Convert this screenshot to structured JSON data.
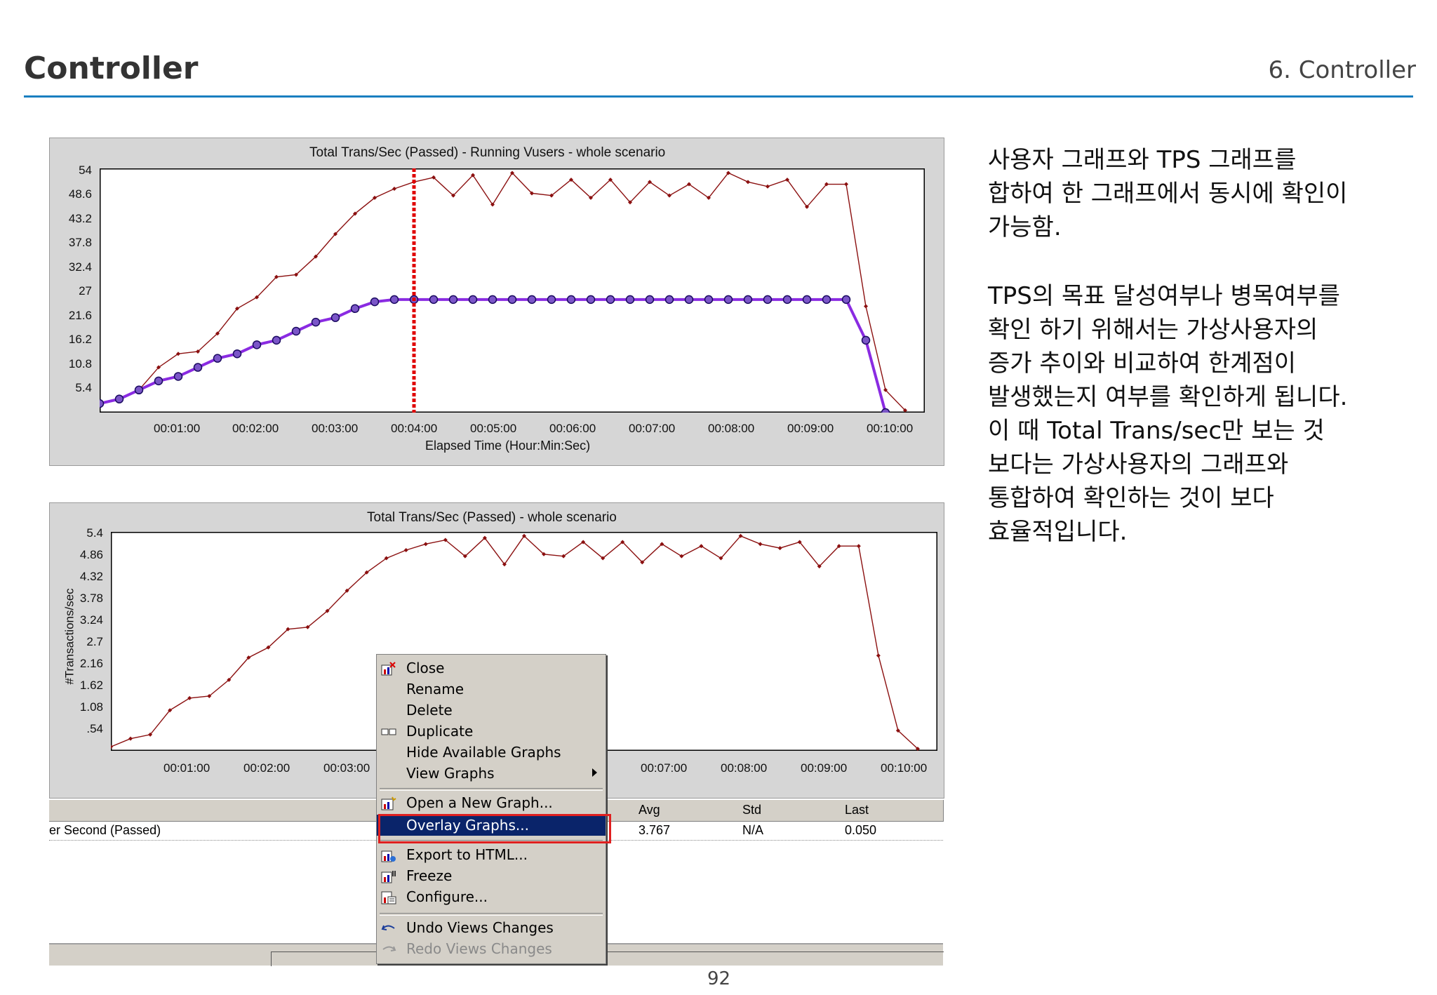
{
  "header": {
    "title": "Controller",
    "section": "6. Controller"
  },
  "graph1": {
    "title": "Total Trans/Sec (Passed) - Running Vusers - whole scenario",
    "xlabel": "Elapsed Time (Hour:Min:Sec)",
    "yticks": [
      "54",
      "48.6",
      "43.2",
      "37.8",
      "32.4",
      "27",
      "21.6",
      "16.2",
      "10.8",
      "5.4"
    ],
    "xticks": [
      "00:01:00",
      "00:02:00",
      "00:03:00",
      "00:04:00",
      "00:05:00",
      "00:06:00",
      "00:07:00",
      "00:08:00",
      "00:09:00",
      "00:10:00"
    ]
  },
  "graph2": {
    "title": "Total Trans/Sec (Passed) - whole scenario",
    "ylabel": "#Transactions/sec",
    "yticks": [
      "5.4",
      "4.86",
      "4.32",
      "3.78",
      "3.24",
      "2.7",
      "2.16",
      "1.62",
      "1.08",
      ".54"
    ],
    "xticks": [
      "00:01:00",
      "00:02:00",
      "00:03:00",
      "00:07:00",
      "00:08:00",
      "00:09:00",
      "00:10:00"
    ]
  },
  "legend_table": {
    "headers": {
      "avg": "Avg",
      "std": "Std",
      "last": "Last"
    },
    "row": {
      "measurement": "er Second (Passed)",
      "avg": "3.767",
      "std": "N/A",
      "last": "0.050"
    }
  },
  "context_menu": {
    "items": {
      "close": "Close",
      "rename": "Rename",
      "delete": "Delete",
      "duplicate": "Duplicate",
      "hide": "Hide Available Graphs",
      "view": "View Graphs",
      "open": "Open a New Graph...",
      "overlay": "Overlay Graphs...",
      "export": "Export to HTML...",
      "freeze": "Freeze",
      "configure": "Configure...",
      "undo": "Undo Views Changes",
      "redo": "Redo Views Changes"
    }
  },
  "description": {
    "para1": [
      "사용자 그래프와 TPS 그래프를",
      "합하여 한 그래프에서 동시에 확인이",
      "가능함."
    ],
    "para2": [
      "TPS의 목표 달성여부나 병목여부를",
      "확인 하기 위해서는 가상사용자의",
      "증가 추이와 비교하여 한계점이",
      "발생했는지 여부를 확인하게 됩니다.",
      "이 때 Total Trans/sec만 보는 것",
      "보다는 가상사용자의 그래프와",
      "통합하여 확인하는 것이 보다",
      "효율적입니다."
    ]
  },
  "page_number": "92",
  "chart_data": [
    {
      "type": "line",
      "title": "Total Trans/Sec (Passed) - Running Vusers - whole scenario",
      "xlabel": "Elapsed Time (Hour:Min:Sec)",
      "ylabel": "",
      "ylim": [
        0,
        54
      ],
      "x_unit": "minutes",
      "series": [
        {
          "name": "Total Trans/Sec (Passed)",
          "color": "#8b1010",
          "x": [
            0.0,
            0.25,
            0.5,
            0.75,
            1.0,
            1.25,
            1.5,
            1.75,
            2.0,
            2.25,
            2.5,
            2.75,
            3.0,
            3.25,
            3.5,
            3.75,
            4.0,
            4.25,
            4.5,
            4.75,
            5.0,
            5.25,
            5.5,
            5.75,
            6.0,
            6.25,
            6.5,
            6.75,
            7.0,
            7.25,
            7.5,
            7.75,
            8.0,
            8.25,
            8.5,
            8.75,
            9.0,
            9.25,
            9.5,
            9.75,
            10.0,
            10.25
          ],
          "y": [
            2.0,
            3.0,
            5.0,
            10.0,
            13.0,
            13.5,
            17.5,
            23.0,
            25.5,
            30.0,
            30.5,
            34.5,
            39.5,
            44.0,
            47.5,
            49.5,
            51.0,
            52.0,
            48.0,
            52.5,
            46.0,
            53.0,
            48.5,
            48.0,
            51.5,
            47.5,
            51.5,
            46.5,
            51.0,
            48.0,
            50.5,
            47.5,
            53.0,
            51.0,
            50.0,
            51.5,
            45.5,
            50.5,
            50.5,
            23.5,
            5.0,
            0.5
          ]
        },
        {
          "name": "Running Vusers",
          "color": "#8a2be2",
          "x": [
            0.0,
            0.25,
            0.5,
            0.75,
            1.0,
            1.25,
            1.5,
            1.75,
            2.0,
            2.25,
            2.5,
            2.75,
            3.0,
            3.25,
            3.5,
            3.75,
            4.0,
            4.25,
            4.5,
            4.75,
            5.0,
            5.25,
            5.5,
            5.75,
            6.0,
            6.25,
            6.5,
            6.75,
            7.0,
            7.25,
            7.5,
            7.75,
            8.0,
            8.25,
            8.5,
            8.75,
            9.0,
            9.25,
            9.5,
            9.75,
            10.0
          ],
          "y": [
            2.0,
            3.0,
            5.0,
            7.0,
            8.0,
            10.0,
            12.0,
            13.0,
            15.0,
            16.0,
            18.0,
            20.0,
            21.0,
            23.0,
            24.5,
            25.0,
            25.0,
            25.0,
            25.0,
            25.0,
            25.0,
            25.0,
            25.0,
            25.0,
            25.0,
            25.0,
            25.0,
            25.0,
            25.0,
            25.0,
            25.0,
            25.0,
            25.0,
            25.0,
            25.0,
            25.0,
            25.0,
            25.0,
            25.0,
            16.0,
            0.0
          ]
        }
      ],
      "marker_x": 4.0
    },
    {
      "type": "line",
      "title": "Total Trans/Sec (Passed) - whole scenario",
      "xlabel": "",
      "ylabel": "#Transactions/sec",
      "ylim": [
        0,
        5.4
      ],
      "x_unit": "minutes",
      "series": [
        {
          "name": "Total Trans/Sec (Passed)",
          "color": "#8b1010",
          "x": [
            0.0,
            0.25,
            0.5,
            0.75,
            1.0,
            1.25,
            1.5,
            1.75,
            2.0,
            2.25,
            2.5,
            2.75,
            3.0,
            3.25,
            3.5,
            3.75,
            4.0,
            4.25,
            4.5,
            4.75,
            5.0,
            5.25,
            5.5,
            5.75,
            6.0,
            6.25,
            6.5,
            6.75,
            7.0,
            7.25,
            7.5,
            7.75,
            8.0,
            8.25,
            8.5,
            8.75,
            9.0,
            9.25,
            9.5,
            9.75,
            10.0,
            10.25
          ],
          "y": [
            0.1,
            0.3,
            0.4,
            1.0,
            1.3,
            1.35,
            1.75,
            2.3,
            2.55,
            3.0,
            3.05,
            3.45,
            3.95,
            4.4,
            4.75,
            4.95,
            5.1,
            5.2,
            4.8,
            5.25,
            4.6,
            5.3,
            4.85,
            4.8,
            5.15,
            4.75,
            5.15,
            4.65,
            5.1,
            4.8,
            5.05,
            4.75,
            5.3,
            5.1,
            5.0,
            5.15,
            4.55,
            5.05,
            5.05,
            2.35,
            0.5,
            0.05
          ]
        }
      ]
    }
  ]
}
